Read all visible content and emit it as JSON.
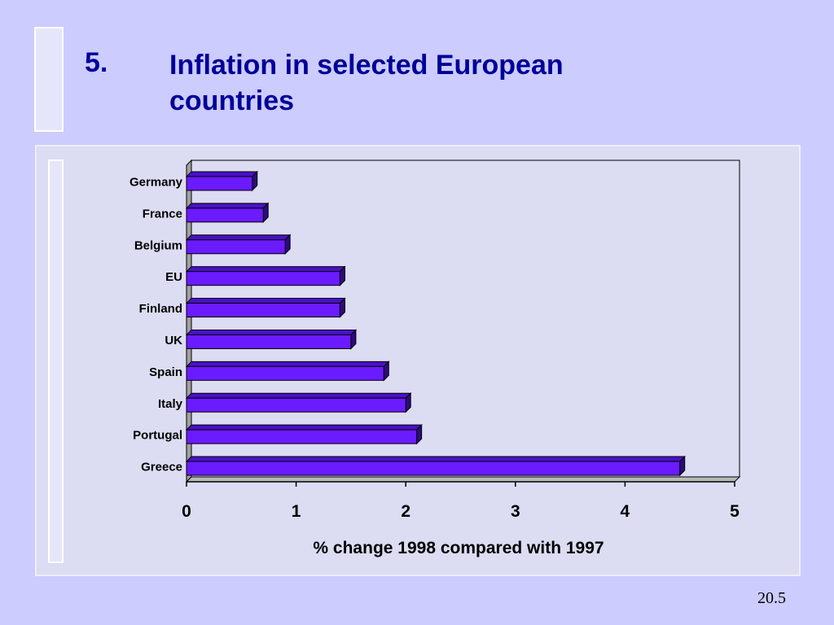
{
  "slide": {
    "number": "5.",
    "title": "Inflation in selected European countries",
    "page": "20.5"
  },
  "colors": {
    "background": "#ccccff",
    "bar_front": "#6b1bff",
    "bar_top": "#4a10c8",
    "bar_side": "#2d0a7e",
    "title": "#000099"
  },
  "chart_data": {
    "type": "bar",
    "orientation": "horizontal",
    "categories": [
      "Germany",
      "France",
      "Belgium",
      "EU",
      "Finland",
      "UK",
      "Spain",
      "Italy",
      "Portugal",
      "Greece"
    ],
    "values": [
      0.6,
      0.7,
      0.9,
      1.4,
      1.4,
      1.5,
      1.8,
      2.0,
      2.1,
      4.5
    ],
    "xlabel": "% change 1998 compared with 1997",
    "xlim": [
      0,
      5
    ],
    "xticks": [
      "0",
      "1",
      "2",
      "3",
      "4",
      "5"
    ],
    "grid": false,
    "legend": "none"
  }
}
